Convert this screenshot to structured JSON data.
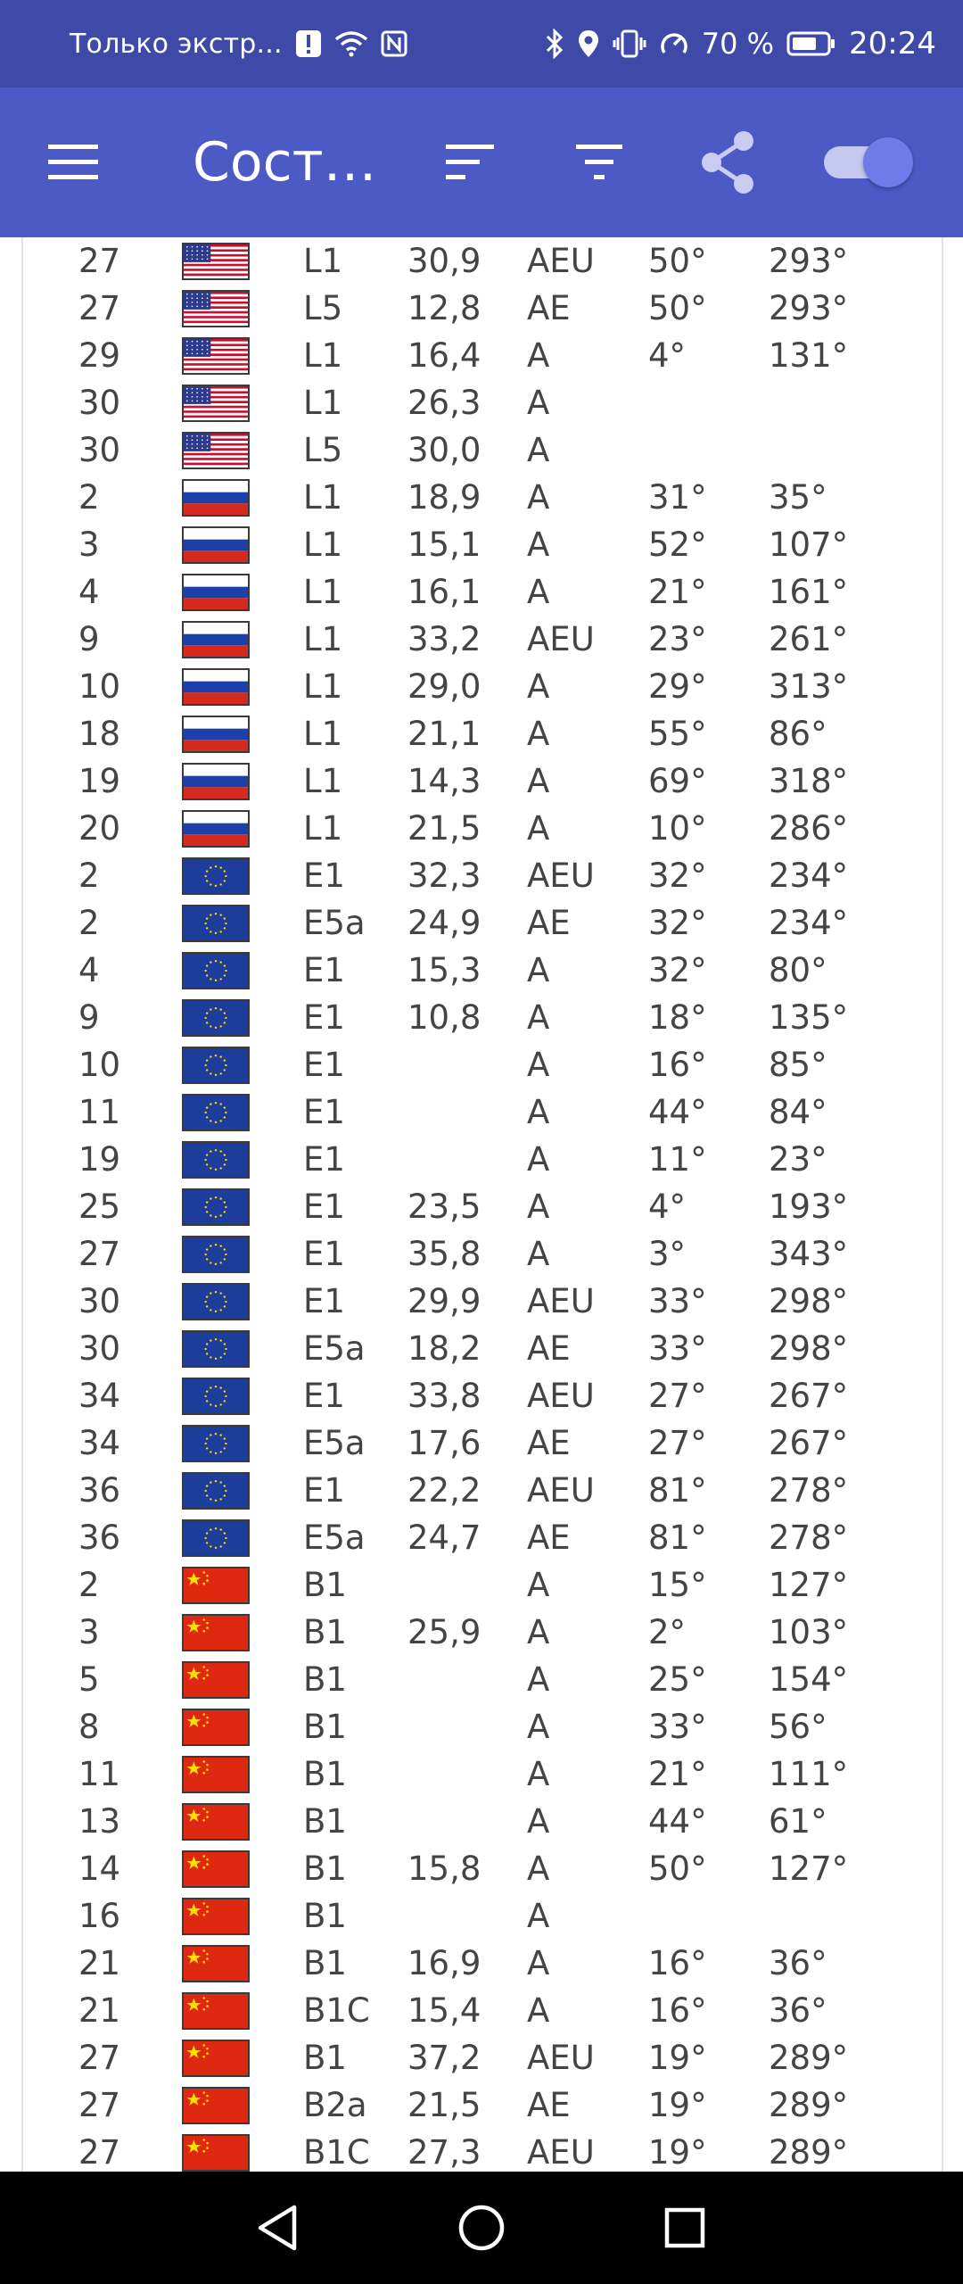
{
  "status_bar": {
    "carrier_text": "Только экстр...",
    "battery_percent": "70 %",
    "time": "20:24"
  },
  "app_bar": {
    "title": "Состо...",
    "toggle_on": true
  },
  "colors": {
    "status_bar": "#3f4aa8",
    "app_bar": "#4d59c5",
    "toggle_knob": "#6f7be8",
    "text": "#444444"
  },
  "rows": [
    {
      "prn": "27",
      "flag": "us",
      "signal": "L1",
      "snr": "30,9",
      "status": "AEU",
      "elevation": "50°",
      "azimuth": "293°"
    },
    {
      "prn": "27",
      "flag": "us",
      "signal": "L5",
      "snr": "12,8",
      "status": "AE",
      "elevation": "50°",
      "azimuth": "293°"
    },
    {
      "prn": "29",
      "flag": "us",
      "signal": "L1",
      "snr": "16,4",
      "status": "A",
      "elevation": "4°",
      "azimuth": "131°"
    },
    {
      "prn": "30",
      "flag": "us",
      "signal": "L1",
      "snr": "26,3",
      "status": "A",
      "elevation": "",
      "azimuth": ""
    },
    {
      "prn": "30",
      "flag": "us",
      "signal": "L5",
      "snr": "30,0",
      "status": "A",
      "elevation": "",
      "azimuth": ""
    },
    {
      "prn": "2",
      "flag": "ru",
      "signal": "L1",
      "snr": "18,9",
      "status": "A",
      "elevation": "31°",
      "azimuth": "35°"
    },
    {
      "prn": "3",
      "flag": "ru",
      "signal": "L1",
      "snr": "15,1",
      "status": "A",
      "elevation": "52°",
      "azimuth": "107°"
    },
    {
      "prn": "4",
      "flag": "ru",
      "signal": "L1",
      "snr": "16,1",
      "status": "A",
      "elevation": "21°",
      "azimuth": "161°"
    },
    {
      "prn": "9",
      "flag": "ru",
      "signal": "L1",
      "snr": "33,2",
      "status": "AEU",
      "elevation": "23°",
      "azimuth": "261°"
    },
    {
      "prn": "10",
      "flag": "ru",
      "signal": "L1",
      "snr": "29,0",
      "status": "A",
      "elevation": "29°",
      "azimuth": "313°"
    },
    {
      "prn": "18",
      "flag": "ru",
      "signal": "L1",
      "snr": "21,1",
      "status": "A",
      "elevation": "55°",
      "azimuth": "86°"
    },
    {
      "prn": "19",
      "flag": "ru",
      "signal": "L1",
      "snr": "14,3",
      "status": "A",
      "elevation": "69°",
      "azimuth": "318°"
    },
    {
      "prn": "20",
      "flag": "ru",
      "signal": "L1",
      "snr": "21,5",
      "status": "A",
      "elevation": "10°",
      "azimuth": "286°"
    },
    {
      "prn": "2",
      "flag": "eu",
      "signal": "E1",
      "snr": "32,3",
      "status": "AEU",
      "elevation": "32°",
      "azimuth": "234°"
    },
    {
      "prn": "2",
      "flag": "eu",
      "signal": "E5a",
      "snr": "24,9",
      "status": "AE",
      "elevation": "32°",
      "azimuth": "234°"
    },
    {
      "prn": "4",
      "flag": "eu",
      "signal": "E1",
      "snr": "15,3",
      "status": "A",
      "elevation": "32°",
      "azimuth": "80°"
    },
    {
      "prn": "9",
      "flag": "eu",
      "signal": "E1",
      "snr": "10,8",
      "status": "A",
      "elevation": "18°",
      "azimuth": "135°"
    },
    {
      "prn": "10",
      "flag": "eu",
      "signal": "E1",
      "snr": "",
      "status": "A",
      "elevation": "16°",
      "azimuth": "85°"
    },
    {
      "prn": "11",
      "flag": "eu",
      "signal": "E1",
      "snr": "",
      "status": "A",
      "elevation": "44°",
      "azimuth": "84°"
    },
    {
      "prn": "19",
      "flag": "eu",
      "signal": "E1",
      "snr": "",
      "status": "A",
      "elevation": "11°",
      "azimuth": "23°"
    },
    {
      "prn": "25",
      "flag": "eu",
      "signal": "E1",
      "snr": "23,5",
      "status": "A",
      "elevation": "4°",
      "azimuth": "193°"
    },
    {
      "prn": "27",
      "flag": "eu",
      "signal": "E1",
      "snr": "35,8",
      "status": "A",
      "elevation": "3°",
      "azimuth": "343°"
    },
    {
      "prn": "30",
      "flag": "eu",
      "signal": "E1",
      "snr": "29,9",
      "status": "AEU",
      "elevation": "33°",
      "azimuth": "298°"
    },
    {
      "prn": "30",
      "flag": "eu",
      "signal": "E5a",
      "snr": "18,2",
      "status": "AE",
      "elevation": "33°",
      "azimuth": "298°"
    },
    {
      "prn": "34",
      "flag": "eu",
      "signal": "E1",
      "snr": "33,8",
      "status": "AEU",
      "elevation": "27°",
      "azimuth": "267°"
    },
    {
      "prn": "34",
      "flag": "eu",
      "signal": "E5a",
      "snr": "17,6",
      "status": "AE",
      "elevation": "27°",
      "azimuth": "267°"
    },
    {
      "prn": "36",
      "flag": "eu",
      "signal": "E1",
      "snr": "22,2",
      "status": "AEU",
      "elevation": "81°",
      "azimuth": "278°"
    },
    {
      "prn": "36",
      "flag": "eu",
      "signal": "E5a",
      "snr": "24,7",
      "status": "AE",
      "elevation": "81°",
      "azimuth": "278°"
    },
    {
      "prn": "2",
      "flag": "cn",
      "signal": "B1",
      "snr": "",
      "status": "A",
      "elevation": "15°",
      "azimuth": "127°"
    },
    {
      "prn": "3",
      "flag": "cn",
      "signal": "B1",
      "snr": "25,9",
      "status": "A",
      "elevation": "2°",
      "azimuth": "103°"
    },
    {
      "prn": "5",
      "flag": "cn",
      "signal": "B1",
      "snr": "",
      "status": "A",
      "elevation": "25°",
      "azimuth": "154°"
    },
    {
      "prn": "8",
      "flag": "cn",
      "signal": "B1",
      "snr": "",
      "status": "A",
      "elevation": "33°",
      "azimuth": "56°"
    },
    {
      "prn": "11",
      "flag": "cn",
      "signal": "B1",
      "snr": "",
      "status": "A",
      "elevation": "21°",
      "azimuth": "111°"
    },
    {
      "prn": "13",
      "flag": "cn",
      "signal": "B1",
      "snr": "",
      "status": "A",
      "elevation": "44°",
      "azimuth": "61°"
    },
    {
      "prn": "14",
      "flag": "cn",
      "signal": "B1",
      "snr": "15,8",
      "status": "A",
      "elevation": "50°",
      "azimuth": "127°"
    },
    {
      "prn": "16",
      "flag": "cn",
      "signal": "B1",
      "snr": "",
      "status": "A",
      "elevation": "",
      "azimuth": ""
    },
    {
      "prn": "21",
      "flag": "cn",
      "signal": "B1",
      "snr": "16,9",
      "status": "A",
      "elevation": "16°",
      "azimuth": "36°"
    },
    {
      "prn": "21",
      "flag": "cn",
      "signal": "B1C",
      "snr": "15,4",
      "status": "A",
      "elevation": "16°",
      "azimuth": "36°"
    },
    {
      "prn": "27",
      "flag": "cn",
      "signal": "B1",
      "snr": "37,2",
      "status": "AEU",
      "elevation": "19°",
      "azimuth": "289°"
    },
    {
      "prn": "27",
      "flag": "cn",
      "signal": "B2a",
      "snr": "21,5",
      "status": "AE",
      "elevation": "19°",
      "azimuth": "289°"
    },
    {
      "prn": "27",
      "flag": "cn",
      "signal": "B1C",
      "snr": "27,3",
      "status": "AEU",
      "elevation": "19°",
      "azimuth": "289°"
    }
  ]
}
